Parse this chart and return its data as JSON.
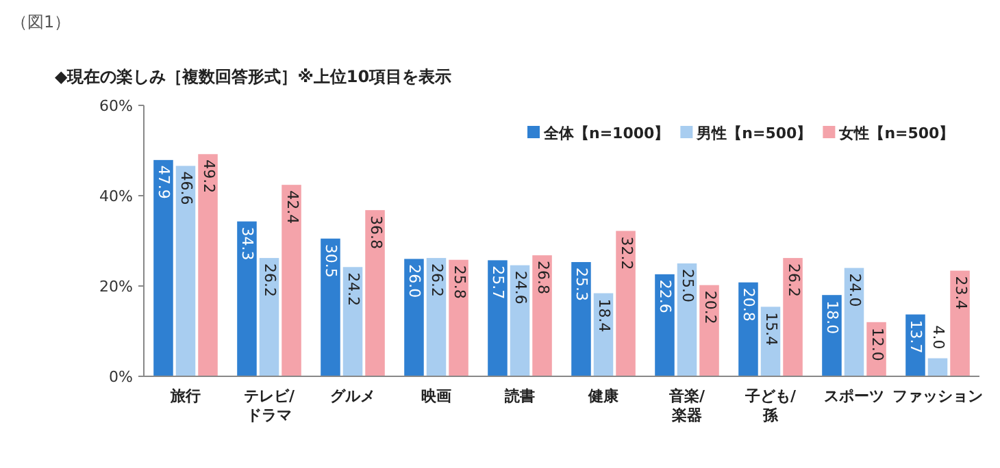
{
  "chart_data": {
    "type": "bar",
    "title": "◆現在の楽しみ［複数回答形式］※上位10項目を表示",
    "annotations": [
      "（図1）"
    ],
    "categories": [
      "旅行",
      "テレビ/ドラマ",
      "グルメ",
      "映画",
      "読書",
      "健康",
      "音楽/楽器",
      "子ども/孫",
      "スポーツ",
      "ファッション"
    ],
    "series": [
      {
        "name": "全体【n=1000】",
        "color": "#2f80d2",
        "values": [
          47.9,
          34.3,
          30.5,
          26.0,
          25.7,
          25.3,
          22.6,
          20.8,
          18.0,
          13.7
        ],
        "value_labels": [
          "47.9",
          "34.3",
          "30.5",
          "26.0",
          "25.7",
          "25.3",
          "22.6",
          "20.8",
          "18.0",
          "13.7"
        ]
      },
      {
        "name": "男性【n=500】",
        "color": "#a8cdf0",
        "values": [
          46.6,
          26.2,
          24.2,
          26.2,
          24.6,
          18.4,
          25.0,
          15.4,
          24.0,
          4.0
        ],
        "value_labels": [
          "46.6",
          "26.2",
          "24.2",
          "26.2",
          "24.6",
          "18.4",
          "25.0",
          "15.4",
          "24.0",
          "4.0"
        ]
      },
      {
        "name": "女性【n=500】",
        "color": "#f4a3aa",
        "values": [
          49.2,
          42.4,
          36.8,
          25.8,
          26.8,
          32.2,
          20.2,
          26.2,
          12.0,
          23.4
        ],
        "value_labels": [
          "49.2",
          "42.4",
          "36.8",
          "25.8",
          "26.8",
          "32.2",
          "20.2",
          "26.2",
          "12.0",
          "23.4"
        ]
      }
    ],
    "ylim": [
      0,
      60
    ],
    "yticks": [
      {
        "value": 0,
        "label": "0%"
      },
      {
        "value": 20,
        "label": "20%"
      },
      {
        "value": 40,
        "label": "40%"
      },
      {
        "value": 60,
        "label": "60%"
      }
    ],
    "legend": "top right",
    "grid": false
  }
}
